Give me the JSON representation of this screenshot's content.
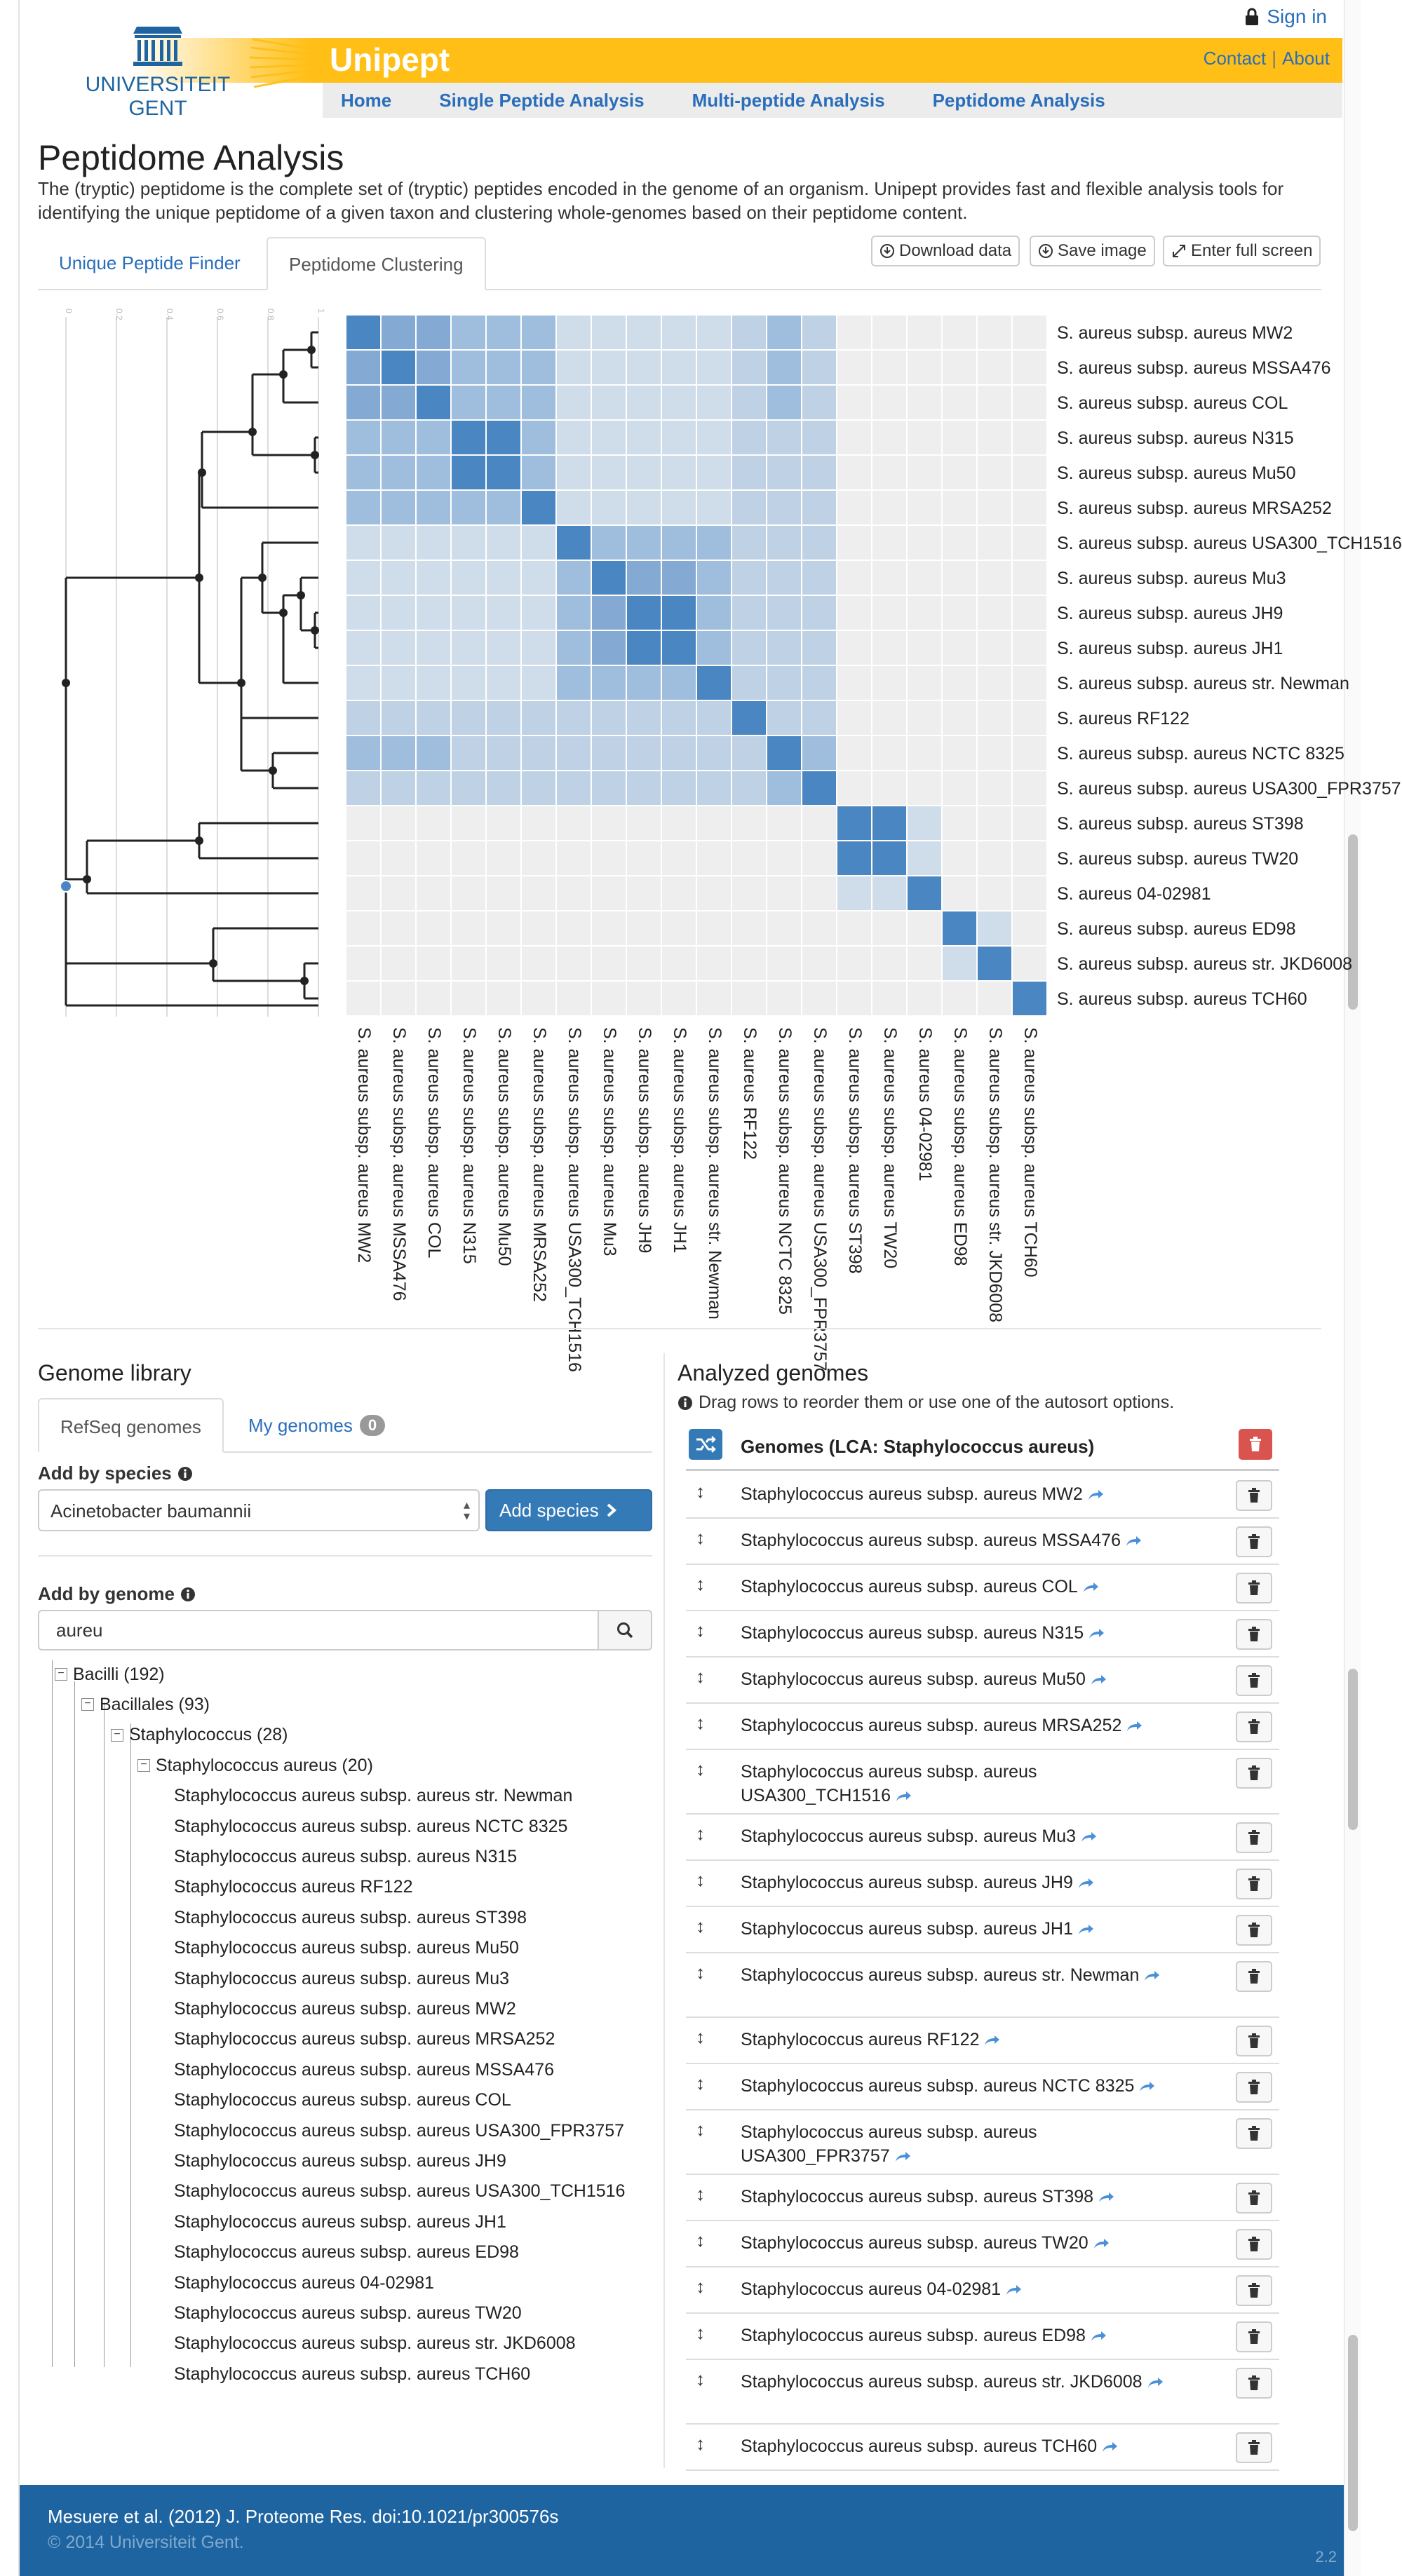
{
  "header": {
    "signin": "Sign in",
    "app_title": "Unipept",
    "logo_text_1": "UNIVERSITEIT",
    "logo_text_2": "GENT",
    "links": [
      "Contact",
      "About"
    ],
    "nav": [
      "Home",
      "Single Peptide Analysis",
      "Multi-peptide Analysis",
      "Peptidome Analysis"
    ]
  },
  "page": {
    "title": "Peptidome Analysis",
    "intro": "The (tryptic) peptidome is the complete set of (tryptic) peptides encoded in the genome of an organism. Unipept provides fast and flexible analysis tools for identifying the unique peptidome of a given taxon and clustering whole-genomes based on their peptidome content."
  },
  "tabs": {
    "unique": "Unique Peptide Finder",
    "clustering": "Peptidome Clustering",
    "download": "Download data",
    "save": "Save image",
    "fullscreen": "Enter full screen"
  },
  "colors": {
    "accent": "#ffbf16",
    "link": "#2a6ebb",
    "primary": "#337ab7",
    "danger": "#d9534f",
    "footer": "#1e64a0"
  },
  "heatmap": {
    "row_labels": [
      "S. aureus subsp. aureus MW2",
      "S. aureus subsp. aureus MSSA476",
      "S. aureus subsp. aureus COL",
      "S. aureus subsp. aureus N315",
      "S. aureus subsp. aureus Mu50",
      "S. aureus subsp. aureus MRSA252",
      "S. aureus subsp. aureus USA300_TCH1516",
      "S. aureus subsp. aureus Mu3",
      "S. aureus subsp. aureus JH9",
      "S. aureus subsp. aureus JH1",
      "S. aureus subsp. aureus str. Newman",
      "S. aureus RF122",
      "S. aureus subsp. aureus NCTC 8325",
      "S. aureus subsp. aureus USA300_FPR3757",
      "S. aureus subsp. aureus ST398",
      "S. aureus subsp. aureus TW20",
      "S. aureus 04-02981",
      "S. aureus subsp. aureus ED98",
      "S. aureus subsp. aureus str. JKD6008",
      "S. aureus subsp. aureus TCH60"
    ],
    "axis_ticks": [
      "1",
      "0.8",
      "0.6",
      "0.4",
      "0.2",
      "0"
    ],
    "levels": [
      [
        5,
        4,
        4,
        3,
        3,
        3,
        1,
        1,
        1,
        1,
        1,
        2,
        3,
        2,
        0,
        0,
        0,
        0,
        0,
        0
      ],
      [
        4,
        5,
        4,
        3,
        3,
        3,
        1,
        1,
        1,
        1,
        1,
        2,
        3,
        2,
        0,
        0,
        0,
        0,
        0,
        0
      ],
      [
        4,
        4,
        5,
        3,
        3,
        3,
        1,
        1,
        1,
        1,
        1,
        2,
        3,
        2,
        0,
        0,
        0,
        0,
        0,
        0
      ],
      [
        3,
        3,
        3,
        5,
        5,
        3,
        1,
        1,
        1,
        1,
        1,
        2,
        2,
        2,
        0,
        0,
        0,
        0,
        0,
        0
      ],
      [
        3,
        3,
        3,
        5,
        5,
        3,
        1,
        1,
        1,
        1,
        1,
        2,
        2,
        2,
        0,
        0,
        0,
        0,
        0,
        0
      ],
      [
        3,
        3,
        3,
        3,
        3,
        5,
        1,
        1,
        1,
        1,
        1,
        2,
        2,
        2,
        0,
        0,
        0,
        0,
        0,
        0
      ],
      [
        1,
        1,
        1,
        1,
        1,
        1,
        5,
        3,
        3,
        3,
        3,
        2,
        2,
        2,
        0,
        0,
        0,
        0,
        0,
        0
      ],
      [
        1,
        1,
        1,
        1,
        1,
        1,
        3,
        5,
        4,
        4,
        3,
        2,
        2,
        2,
        0,
        0,
        0,
        0,
        0,
        0
      ],
      [
        1,
        1,
        1,
        1,
        1,
        1,
        3,
        4,
        5,
        5,
        3,
        2,
        2,
        2,
        0,
        0,
        0,
        0,
        0,
        0
      ],
      [
        1,
        1,
        1,
        1,
        1,
        1,
        3,
        4,
        5,
        5,
        3,
        2,
        2,
        2,
        0,
        0,
        0,
        0,
        0,
        0
      ],
      [
        1,
        1,
        1,
        1,
        1,
        1,
        3,
        3,
        3,
        3,
        5,
        2,
        2,
        2,
        0,
        0,
        0,
        0,
        0,
        0
      ],
      [
        2,
        2,
        2,
        2,
        2,
        2,
        2,
        2,
        2,
        2,
        2,
        5,
        2,
        2,
        0,
        0,
        0,
        0,
        0,
        0
      ],
      [
        3,
        3,
        3,
        2,
        2,
        2,
        2,
        2,
        2,
        2,
        2,
        2,
        5,
        3,
        0,
        0,
        0,
        0,
        0,
        0
      ],
      [
        2,
        2,
        2,
        2,
        2,
        2,
        2,
        2,
        2,
        2,
        2,
        2,
        3,
        5,
        0,
        0,
        0,
        0,
        0,
        0
      ],
      [
        0,
        0,
        0,
        0,
        0,
        0,
        0,
        0,
        0,
        0,
        0,
        0,
        0,
        0,
        5,
        5,
        1,
        0,
        0,
        0
      ],
      [
        0,
        0,
        0,
        0,
        0,
        0,
        0,
        0,
        0,
        0,
        0,
        0,
        0,
        0,
        5,
        5,
        1,
        0,
        0,
        0
      ],
      [
        0,
        0,
        0,
        0,
        0,
        0,
        0,
        0,
        0,
        0,
        0,
        0,
        0,
        0,
        1,
        1,
        5,
        0,
        0,
        0
      ],
      [
        0,
        0,
        0,
        0,
        0,
        0,
        0,
        0,
        0,
        0,
        0,
        0,
        0,
        0,
        0,
        0,
        0,
        5,
        1,
        0
      ],
      [
        0,
        0,
        0,
        0,
        0,
        0,
        0,
        0,
        0,
        0,
        0,
        0,
        0,
        0,
        0,
        0,
        0,
        1,
        5,
        0
      ],
      [
        0,
        0,
        0,
        0,
        0,
        0,
        0,
        0,
        0,
        0,
        0,
        0,
        0,
        0,
        0,
        0,
        0,
        0,
        0,
        5
      ]
    ]
  },
  "library": {
    "title": "Genome library",
    "tab_refseq": "RefSeq genomes",
    "tab_my": "My genomes",
    "my_count": "0",
    "add_by_species": "Add by species",
    "species_value": "Acinetobacter baumannii",
    "add_species_btn": "Add species",
    "add_by_genome": "Add by genome",
    "search_value": "aureu",
    "tree": [
      {
        "label": "Bacilli (192)",
        "level": 0,
        "toggle": true
      },
      {
        "label": "Bacillales (93)",
        "level": 1,
        "toggle": true
      },
      {
        "label": "Staphylococcus (28)",
        "level": 2,
        "toggle": true
      },
      {
        "label": "Staphylococcus aureus (20)",
        "level": 3,
        "toggle": true
      },
      {
        "label": "Staphylococcus aureus subsp. aureus str. Newman",
        "level": 4
      },
      {
        "label": "Staphylococcus aureus subsp. aureus NCTC 8325",
        "level": 4
      },
      {
        "label": "Staphylococcus aureus subsp. aureus N315",
        "level": 4
      },
      {
        "label": "Staphylococcus aureus RF122",
        "level": 4
      },
      {
        "label": "Staphylococcus aureus subsp. aureus ST398",
        "level": 4
      },
      {
        "label": "Staphylococcus aureus subsp. aureus Mu50",
        "level": 4
      },
      {
        "label": "Staphylococcus aureus subsp. aureus Mu3",
        "level": 4
      },
      {
        "label": "Staphylococcus aureus subsp. aureus MW2",
        "level": 4
      },
      {
        "label": "Staphylococcus aureus subsp. aureus MRSA252",
        "level": 4
      },
      {
        "label": "Staphylococcus aureus subsp. aureus MSSA476",
        "level": 4
      },
      {
        "label": "Staphylococcus aureus subsp. aureus COL",
        "level": 4
      },
      {
        "label": "Staphylococcus aureus subsp. aureus USA300_FPR3757",
        "level": 4
      },
      {
        "label": "Staphylococcus aureus subsp. aureus JH9",
        "level": 4
      },
      {
        "label": "Staphylococcus aureus subsp. aureus USA300_TCH1516",
        "level": 4
      },
      {
        "label": "Staphylococcus aureus subsp. aureus JH1",
        "level": 4
      },
      {
        "label": "Staphylococcus aureus subsp. aureus ED98",
        "level": 4
      },
      {
        "label": "Staphylococcus aureus 04-02981",
        "level": 4
      },
      {
        "label": "Staphylococcus aureus subsp. aureus TW20",
        "level": 4
      },
      {
        "label": "Staphylococcus aureus subsp. aureus str. JKD6008",
        "level": 4
      },
      {
        "label": "Staphylococcus aureus subsp. aureus TCH60",
        "level": 4
      }
    ]
  },
  "analyzed": {
    "title": "Analyzed genomes",
    "info": "Drag rows to reorder them or use one of the autosort options.",
    "header": "Genomes (LCA: Staphylococcus aureus)",
    "rows": [
      "Staphylococcus aureus subsp. aureus MW2",
      "Staphylococcus aureus subsp. aureus MSSA476",
      "Staphylococcus aureus subsp. aureus COL",
      "Staphylococcus aureus subsp. aureus N315",
      "Staphylococcus aureus subsp. aureus Mu50",
      "Staphylococcus aureus subsp. aureus MRSA252",
      "Staphylococcus aureus subsp. aureus USA300_TCH1516",
      "Staphylococcus aureus subsp. aureus Mu3",
      "Staphylococcus aureus subsp. aureus JH9",
      "Staphylococcus aureus subsp. aureus JH1",
      "Staphylococcus aureus subsp. aureus str. Newman",
      "Staphylococcus aureus RF122",
      "Staphylococcus aureus subsp. aureus NCTC 8325",
      "Staphylococcus aureus subsp. aureus USA300_FPR3757",
      "Staphylococcus aureus subsp. aureus ST398",
      "Staphylococcus aureus subsp. aureus TW20",
      "Staphylococcus aureus 04-02981",
      "Staphylococcus aureus subsp. aureus ED98",
      "Staphylococcus aureus subsp. aureus str. JKD6008",
      "Staphylococcus aureus subsp. aureus TCH60"
    ]
  },
  "footer": {
    "citation": "Mesuere et al. (2012) J. Proteome Res. doi:10.1021/pr300576s",
    "copyright": "© 2014 Universiteit Gent.",
    "version": "2.2"
  }
}
